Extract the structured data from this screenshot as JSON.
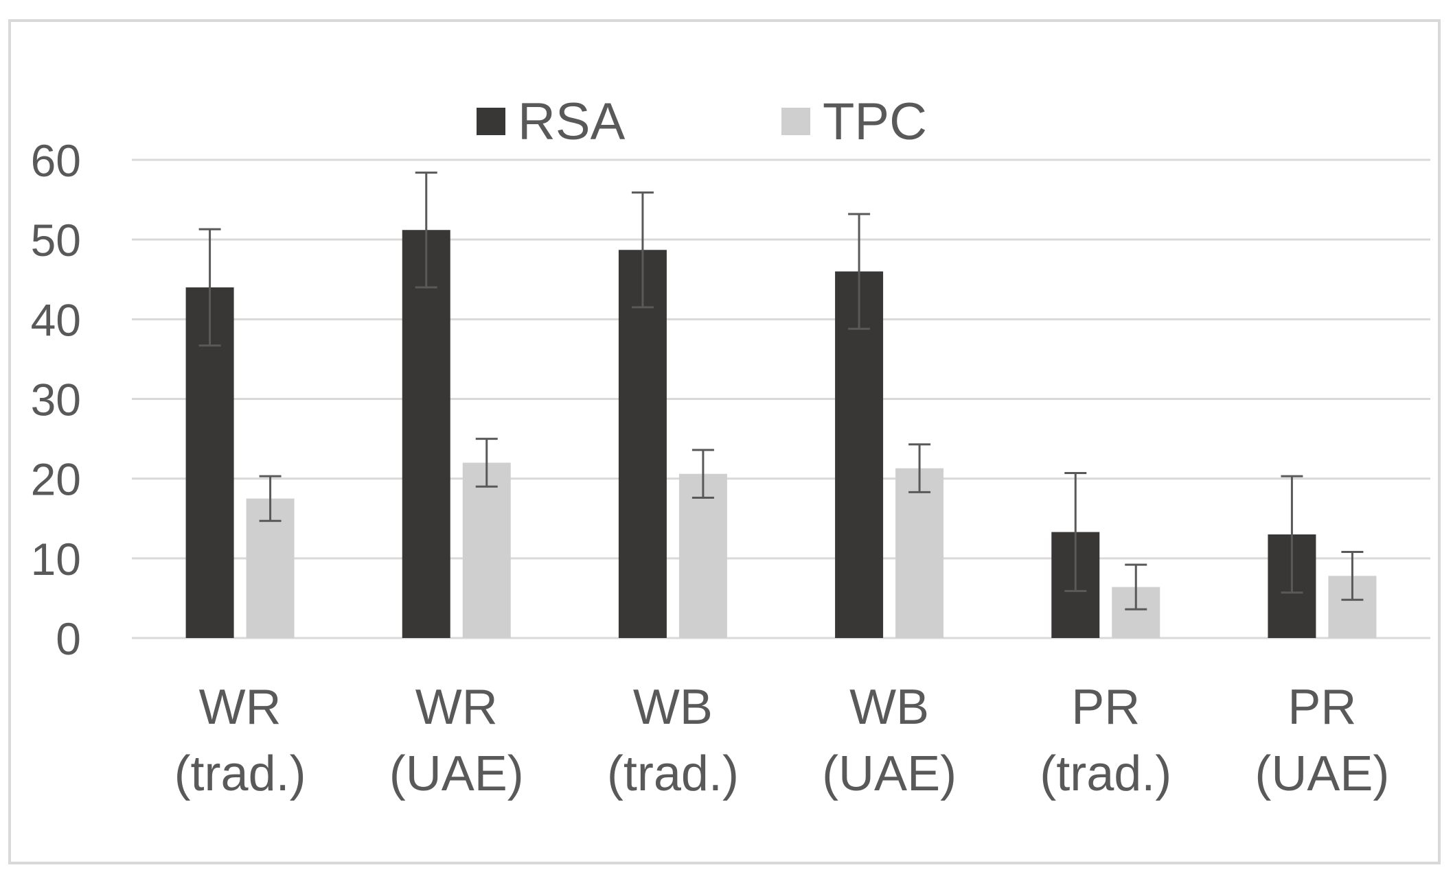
{
  "chart_data": {
    "type": "bar",
    "title": "",
    "xlabel": "",
    "ylabel": "",
    "categories": [
      [
        "WR",
        "(trad.)"
      ],
      [
        "WR",
        "(UAE)"
      ],
      [
        "WB",
        "(trad.)"
      ],
      [
        "WB",
        "(UAE)"
      ],
      [
        "PR",
        "(trad.)"
      ],
      [
        "PR",
        "(UAE)"
      ]
    ],
    "series": [
      {
        "name": "RSA",
        "color": "#383735",
        "values": [
          44,
          51.2,
          48.7,
          46,
          13.3,
          13
        ],
        "errors": [
          7.3,
          7.2,
          7.2,
          7.2,
          7.4,
          7.3
        ]
      },
      {
        "name": "TPC",
        "color": "#d0cfcf",
        "values": [
          17.5,
          22,
          20.6,
          21.3,
          6.4,
          7.8
        ],
        "errors": [
          2.8,
          3,
          3,
          3,
          2.8,
          3
        ]
      }
    ],
    "ylim": [
      0,
      60
    ],
    "yticks": [
      0,
      10,
      20,
      30,
      40,
      50,
      60
    ],
    "grid": true,
    "legend_position": "top-center"
  }
}
